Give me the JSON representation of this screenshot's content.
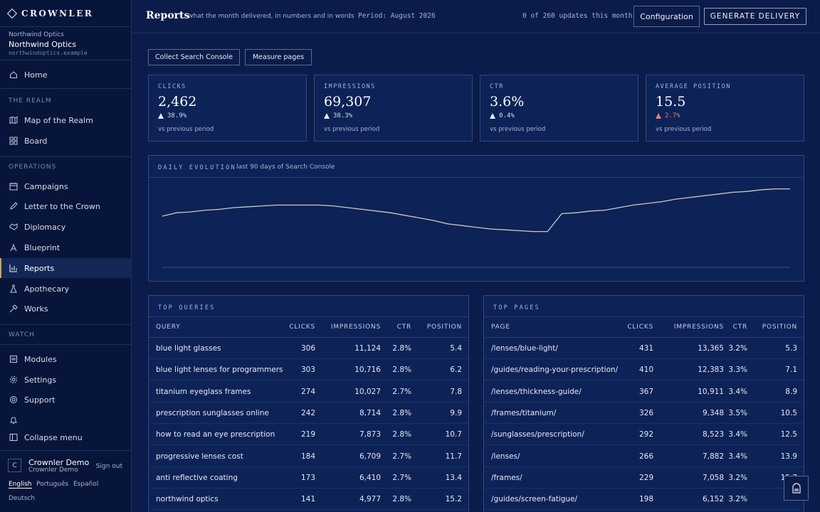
{
  "brand": {
    "name": "CROWNLER"
  },
  "org": {
    "label": "Northwind Optics",
    "name": "Northwind Optics",
    "domain": "northwindoptics.example"
  },
  "nav": {
    "home": "Home",
    "section_realm": "THE REALM",
    "map": "Map of the Realm",
    "board": "Board",
    "section_operations": "OPERATIONS",
    "campaigns": "Campaigns",
    "letter": "Letter to the Crown",
    "diplomacy": "Diplomacy",
    "blueprint": "Blueprint",
    "reports": "Reports",
    "apothecary": "Apothecary",
    "works": "Works",
    "section_watch": "WATCH",
    "modules": "Modules",
    "settings": "Settings",
    "support": "Support",
    "notifications_icon": "bell-icon",
    "collapse": "Collapse menu"
  },
  "user": {
    "initial": "C",
    "name": "Crownler Demo",
    "sub": "Crownler Demo",
    "signout": "Sign out"
  },
  "languages": [
    "English",
    "Português",
    "Español",
    "Deutsch"
  ],
  "header": {
    "title": "Reports",
    "subtitle": "what the month delivered, in numbers and in words",
    "period": "Period: August 2026",
    "updates": "0 of 260 updates this month",
    "config_label": "Configuration",
    "deliver_label": "GENERATE DELIVERY"
  },
  "actions": {
    "collect": "Collect Search Console",
    "measure": "Measure pages"
  },
  "metrics": [
    {
      "label": "CLICKS",
      "value": "2,462",
      "delta": "38.9%",
      "trend": "up",
      "note": "vs previous period"
    },
    {
      "label": "IMPRESSIONS",
      "value": "69,307",
      "delta": "38.3%",
      "trend": "up",
      "note": "vs previous period"
    },
    {
      "label": "CTR",
      "value": "3.6%",
      "delta": "0.4%",
      "trend": "up",
      "note": "vs previous period"
    },
    {
      "label": "AVERAGE POSITION",
      "value": "15.5",
      "delta": "2.7%",
      "trend": "worse",
      "note": "vs previous period"
    }
  ],
  "chart": {
    "title": "DAILY EVOLUTION",
    "subtitle": "last 90 days of Search Console"
  },
  "chart_data": {
    "type": "line",
    "title": "DAILY EVOLUTION",
    "xlabel": "",
    "ylabel": "",
    "grid": false,
    "x_count": 45,
    "series": [
      {
        "values": [
          60,
          64,
          65,
          67,
          68,
          70,
          71,
          72,
          73,
          73,
          73,
          73,
          72,
          70,
          68,
          66,
          64,
          61,
          58,
          55,
          51,
          49,
          47,
          45,
          44,
          43,
          42,
          42,
          63,
          64,
          66,
          67,
          70,
          73,
          75,
          77,
          80,
          82,
          84,
          86,
          88,
          89,
          91,
          92,
          92
        ]
      }
    ]
  },
  "top_queries": {
    "title": "TOP QUERIES",
    "columns": [
      "QUERY",
      "CLICKS",
      "IMPRESSIONS",
      "CTR",
      "POSITION"
    ],
    "rows": [
      [
        "blue light glasses",
        "306",
        "11,124",
        "2.8%",
        "5.4"
      ],
      [
        "blue light lenses for programmers",
        "303",
        "10,716",
        "2.8%",
        "6.2"
      ],
      [
        "titanium eyeglass frames",
        "274",
        "10,027",
        "2.7%",
        "7.8"
      ],
      [
        "prescription sunglasses online",
        "242",
        "8,714",
        "2.8%",
        "9.9"
      ],
      [
        "how to read an eye prescription",
        "219",
        "7,873",
        "2.8%",
        "10.7"
      ],
      [
        "progressive lenses cost",
        "184",
        "6,709",
        "2.7%",
        "11.7"
      ],
      [
        "anti reflective coating",
        "173",
        "6,410",
        "2.7%",
        "13.4"
      ],
      [
        "northwind optics",
        "141",
        "4,977",
        "2.8%",
        "15.2"
      ]
    ]
  },
  "top_pages": {
    "title": "TOP PAGES",
    "columns": [
      "PAGE",
      "CLICKS",
      "IMPRESSIONS",
      "CTR",
      "POSITION"
    ],
    "rows": [
      [
        "/lenses/blue-light/",
        "431",
        "13,365",
        "3.2%",
        "5.3"
      ],
      [
        "/guides/reading-your-prescription/",
        "410",
        "12,383",
        "3.3%",
        "7.1"
      ],
      [
        "/lenses/thickness-guide/",
        "367",
        "10,911",
        "3.4%",
        "8.9"
      ],
      [
        "/frames/titanium/",
        "326",
        "9,348",
        "3.5%",
        "10.5"
      ],
      [
        "/sunglasses/prescription/",
        "292",
        "8,523",
        "3.4%",
        "12.5"
      ],
      [
        "/lenses/",
        "266",
        "7,882",
        "3.4%",
        "13.9"
      ],
      [
        "/frames/",
        "229",
        "7,058",
        "3.2%",
        "15.7"
      ],
      [
        "/guides/screen-fatigue/",
        "198",
        "6,152",
        "3.2%",
        ""
      ]
    ]
  },
  "help": {
    "icon": "helmet-icon"
  }
}
